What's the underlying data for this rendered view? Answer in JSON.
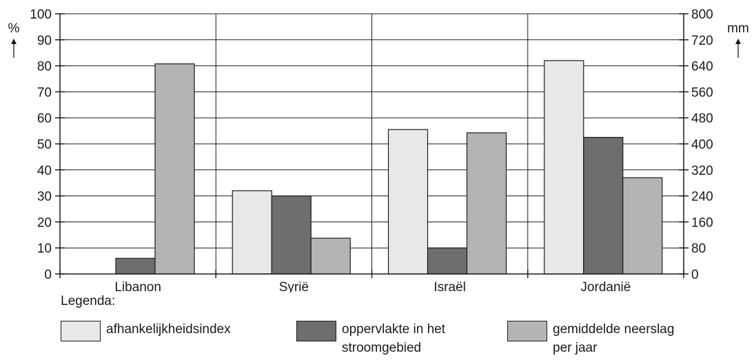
{
  "chart_data": {
    "type": "bar",
    "categories": [
      "Libanon",
      "Syrië",
      "Israël",
      "Jordanië"
    ],
    "series": [
      {
        "name": "afhankelijkheidsindex",
        "axis": "left",
        "color": "#e8e8e8",
        "values": [
          0,
          32,
          55.5,
          82
        ]
      },
      {
        "name": "oppervlakte in het stroomgebied",
        "axis": "left",
        "color": "#6e6e6e",
        "values": [
          6,
          30,
          10,
          52.5
        ]
      },
      {
        "name": "gemiddelde neerslag per jaar",
        "axis": "right",
        "color": "#b4b4b4",
        "values": [
          646,
          110,
          434,
          296
        ]
      }
    ],
    "y_left": {
      "label": "%",
      "ylim": [
        0,
        100
      ],
      "ticks": [
        0,
        10,
        20,
        30,
        40,
        50,
        60,
        70,
        80,
        90,
        100
      ]
    },
    "y_right": {
      "label": "mm",
      "ylim": [
        0,
        800
      ],
      "ticks": [
        0,
        80,
        160,
        240,
        320,
        400,
        480,
        560,
        640,
        720,
        800
      ]
    },
    "grid": true
  },
  "legend": {
    "title": "Legenda:",
    "items": [
      {
        "line1": "afhankelijkheidsindex",
        "line2": "",
        "color": "#e8e8e8"
      },
      {
        "line1": "oppervlakte in het",
        "line2": "stroomgebied",
        "color": "#6e6e6e"
      },
      {
        "line1": "gemiddelde neerslag",
        "line2": "per jaar",
        "color": "#b4b4b4"
      }
    ]
  }
}
